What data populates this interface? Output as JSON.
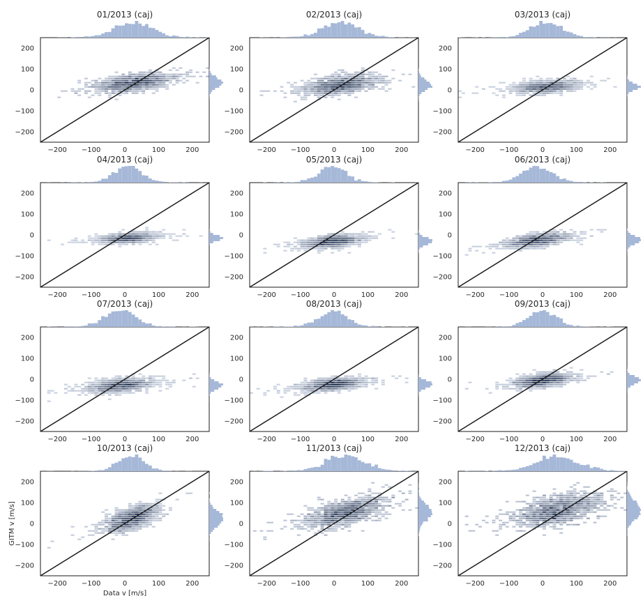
{
  "chart_data": {
    "type": "heatmap",
    "figure": {
      "xlabel": "Data v [m/s]",
      "ylabel": "GITM v [m/s]",
      "xlim": [
        -250,
        250
      ],
      "ylim": [
        -250,
        250
      ],
      "xticks": [
        -200,
        -100,
        0,
        100,
        200
      ],
      "yticks": [
        -200,
        -100,
        0,
        100,
        200
      ],
      "reference_line": "y = x",
      "marginal_histograms": [
        "top",
        "right"
      ],
      "colormap": "light-to-dark blue",
      "grid": false
    },
    "colors": {
      "cell_dark": "#0f2040",
      "cell_light": "#dfe6f2",
      "histogram": "#a6b8d8",
      "line": "#1a1a1a",
      "frame": "#1a1a1a",
      "text": "#262626"
    },
    "panels": [
      {
        "title": "01/2013 (caj)",
        "center": [
          25,
          35
        ],
        "spread_x": 55,
        "spread_y": 20,
        "tilt": 0.2
      },
      {
        "title": "02/2013 (caj)",
        "center": [
          20,
          25
        ],
        "spread_x": 50,
        "spread_y": 22,
        "tilt": 0.2
      },
      {
        "title": "03/2013 (caj)",
        "center": [
          10,
          15
        ],
        "spread_x": 45,
        "spread_y": 15,
        "tilt": 0.1
      },
      {
        "title": "04/2013 (caj)",
        "center": [
          10,
          -15
        ],
        "spread_x": 40,
        "spread_y": 12,
        "tilt": 0.1
      },
      {
        "title": "05/2013 (caj)",
        "center": [
          -5,
          -30
        ],
        "spread_x": 40,
        "spread_y": 14,
        "tilt": 0.15
      },
      {
        "title": "06/2013 (caj)",
        "center": [
          -15,
          -25
        ],
        "spread_x": 45,
        "spread_y": 15,
        "tilt": 0.2
      },
      {
        "title": "07/2013 (caj)",
        "center": [
          -15,
          -30
        ],
        "spread_x": 45,
        "spread_y": 15,
        "tilt": 0.15
      },
      {
        "title": "08/2013 (caj)",
        "center": [
          -5,
          -25
        ],
        "spread_x": 40,
        "spread_y": 14,
        "tilt": 0.15
      },
      {
        "title": "09/2013 (caj)",
        "center": [
          0,
          -5
        ],
        "spread_x": 40,
        "spread_y": 15,
        "tilt": 0.2
      },
      {
        "title": "10/2013 (caj)",
        "center": [
          20,
          25
        ],
        "spread_x": 35,
        "spread_y": 25,
        "tilt": 0.5
      },
      {
        "title": "11/2013 (caj)",
        "center": [
          35,
          55
        ],
        "spread_x": 55,
        "spread_y": 30,
        "tilt": 0.35
      },
      {
        "title": "12/2013 (caj)",
        "center": [
          45,
          65
        ],
        "spread_x": 60,
        "spread_y": 35,
        "tilt": 0.3
      }
    ]
  }
}
